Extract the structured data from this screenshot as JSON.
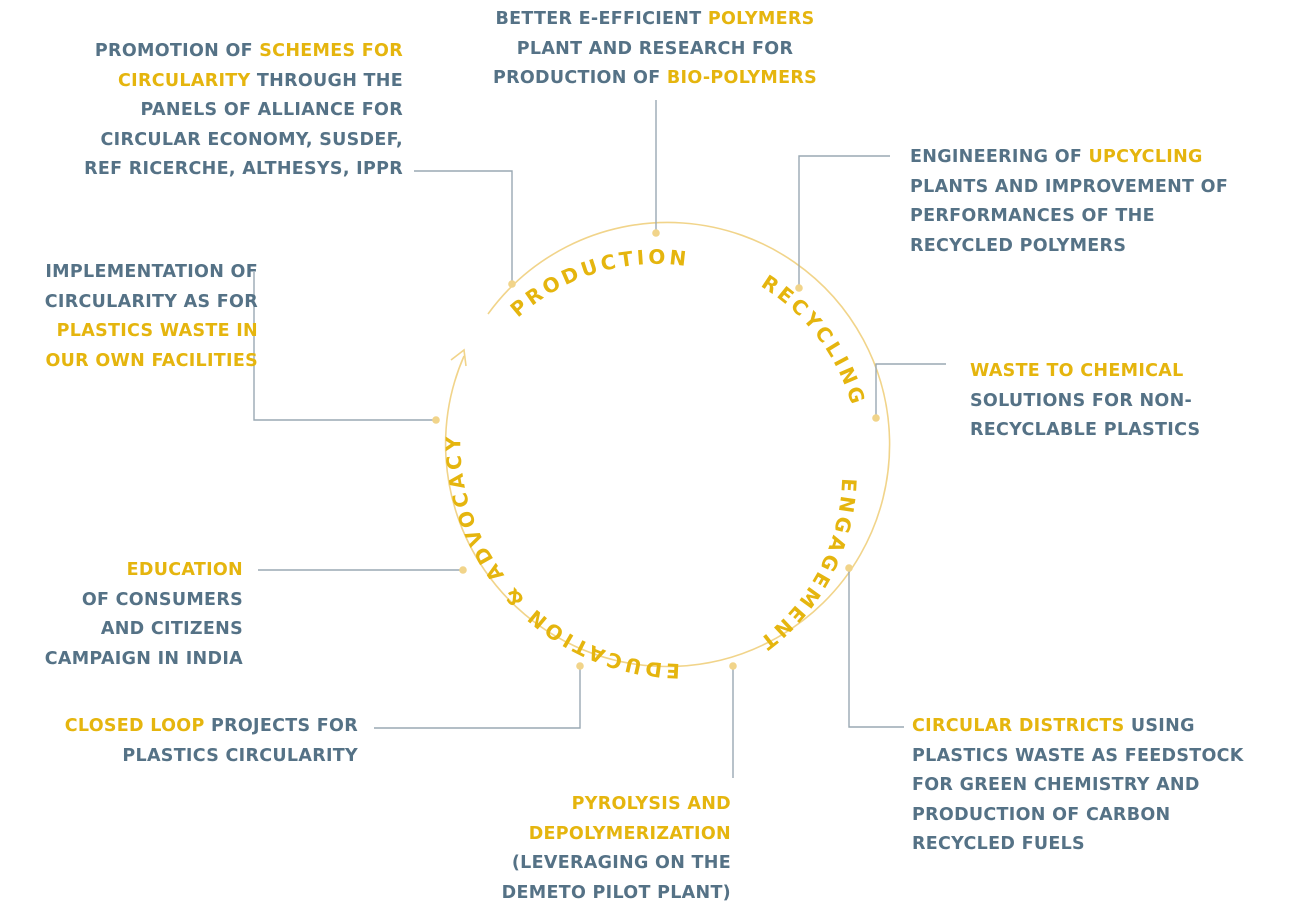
{
  "colors": {
    "text": "#557286",
    "highlight": "#e5b50e",
    "circle": "#f1d48a",
    "connector": "#9aa9b3"
  },
  "stages": [
    {
      "id": "production",
      "label": "PRODUCTION"
    },
    {
      "id": "recycling",
      "label": "RECYCLING"
    },
    {
      "id": "engagement",
      "label": "ENGAGEMENT"
    },
    {
      "id": "education",
      "label": "EDUCATION & ADVOCACY"
    }
  ],
  "callouts": {
    "top": {
      "lines": [
        [
          {
            "t": "BETTER E-EFFICIENT "
          },
          {
            "t": "POLYMERS",
            "h": true
          }
        ],
        [
          {
            "t": "PLANT AND RESEARCH FOR"
          }
        ],
        [
          {
            "t": "PRODUCTION OF "
          },
          {
            "t": "BIO-POLYMERS",
            "h": true
          }
        ]
      ]
    },
    "top_left": {
      "lines": [
        [
          {
            "t": "PROMOTION OF "
          },
          {
            "t": "SCHEMES FOR",
            "h": true
          }
        ],
        [
          {
            "t": "CIRCULARITY",
            "h": true
          },
          {
            "t": " THROUGH THE"
          }
        ],
        [
          {
            "t": "PANELS OF ALLIANCE FOR"
          }
        ],
        [
          {
            "t": "CIRCULAR ECONOMY, SUSDEF,"
          }
        ],
        [
          {
            "t": "REF RICERCHE, ALTHESYS, IPPR"
          }
        ]
      ]
    },
    "top_right": {
      "lines": [
        [
          {
            "t": "ENGINEERING OF "
          },
          {
            "t": "UPCYCLING",
            "h": true
          }
        ],
        [
          {
            "t": "PLANTS AND IMPROVEMENT OF"
          }
        ],
        [
          {
            "t": "PERFORMANCES OF THE"
          }
        ],
        [
          {
            "t": "RECYCLED POLYMERS"
          }
        ]
      ]
    },
    "mid_left": {
      "lines": [
        [
          {
            "t": "IMPLEMENTATION OF"
          }
        ],
        [
          {
            "t": "CIRCULARITY AS FOR"
          }
        ],
        [
          {
            "t": "PLASTICS WASTE IN",
            "h": true
          }
        ],
        [
          {
            "t": "OUR OWN FACILITIES",
            "h": true
          }
        ]
      ]
    },
    "mid_right": {
      "lines": [
        [
          {
            "t": "WASTE TO CHEMICAL",
            "h": true
          }
        ],
        [
          {
            "t": "SOLUTIONS FOR NON-"
          }
        ],
        [
          {
            "t": "RECYCLABLE PLASTICS"
          }
        ]
      ]
    },
    "low_left": {
      "lines": [
        [
          {
            "t": "EDUCATION",
            "h": true
          }
        ],
        [
          {
            "t": "OF CONSUMERS"
          }
        ],
        [
          {
            "t": "AND CITIZENS"
          }
        ],
        [
          {
            "t": "CAMPAIGN IN INDIA"
          }
        ]
      ]
    },
    "bottom_left": {
      "lines": [
        [
          {
            "t": "CLOSED LOOP",
            "h": true
          },
          {
            "t": " PROJECTS FOR"
          }
        ],
        [
          {
            "t": "PLASTICS CIRCULARITY"
          }
        ]
      ]
    },
    "bottom_right": {
      "lines": [
        [
          {
            "t": "CIRCULAR DISTRICTS",
            "h": true
          },
          {
            "t": " USING"
          }
        ],
        [
          {
            "t": "PLASTICS WASTE AS FEEDSTOCK"
          }
        ],
        [
          {
            "t": "FOR GREEN CHEMISTRY AND"
          }
        ],
        [
          {
            "t": "PRODUCTION OF CARBON"
          }
        ],
        [
          {
            "t": "RECYCLED FUELS"
          }
        ]
      ]
    },
    "bottom": {
      "lines": [
        [
          {
            "t": "PYROLYSIS AND",
            "h": true
          }
        ],
        [
          {
            "t": "DEPOLYMERIZATION",
            "h": true
          }
        ],
        [
          {
            "t": "(LEVERAGING ON THE"
          }
        ],
        [
          {
            "t": "DEMETO PILOT PLANT)"
          }
        ]
      ]
    }
  }
}
